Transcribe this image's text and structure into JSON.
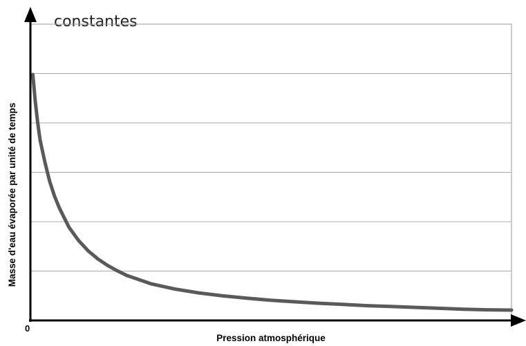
{
  "figure": {
    "caption_fragment": "constantes"
  },
  "chart_data": {
    "type": "line",
    "title": "",
    "xlabel": "Pression atmosphérique",
    "ylabel": "Masse d'eau évaporée par unité de temps",
    "origin_label": "0",
    "xlim": [
      0,
      100
    ],
    "ylim": [
      0,
      100
    ],
    "x_tick_labels": [],
    "y_tick_labels": [],
    "grid": "horizontal",
    "legend": "none",
    "series": [
      {
        "color": "#5a5a5a",
        "x": [
          0.5,
          1,
          1.5,
          2,
          3,
          4,
          5,
          6,
          8,
          10,
          12,
          14,
          16,
          18,
          20,
          25,
          30,
          35,
          40,
          45,
          50,
          55,
          60,
          65,
          70,
          75,
          80,
          85,
          90,
          95,
          100
        ],
        "y": [
          83,
          74,
          67,
          61,
          53.5,
          47,
          42,
          38,
          31.5,
          27,
          23.5,
          20.8,
          18.6,
          16.8,
          15.2,
          12.4,
          10.6,
          9.3,
          8.3,
          7.5,
          6.8,
          6.3,
          5.8,
          5.4,
          5.0,
          4.7,
          4.4,
          4.1,
          3.8,
          3.6,
          3.5
        ]
      }
    ]
  }
}
